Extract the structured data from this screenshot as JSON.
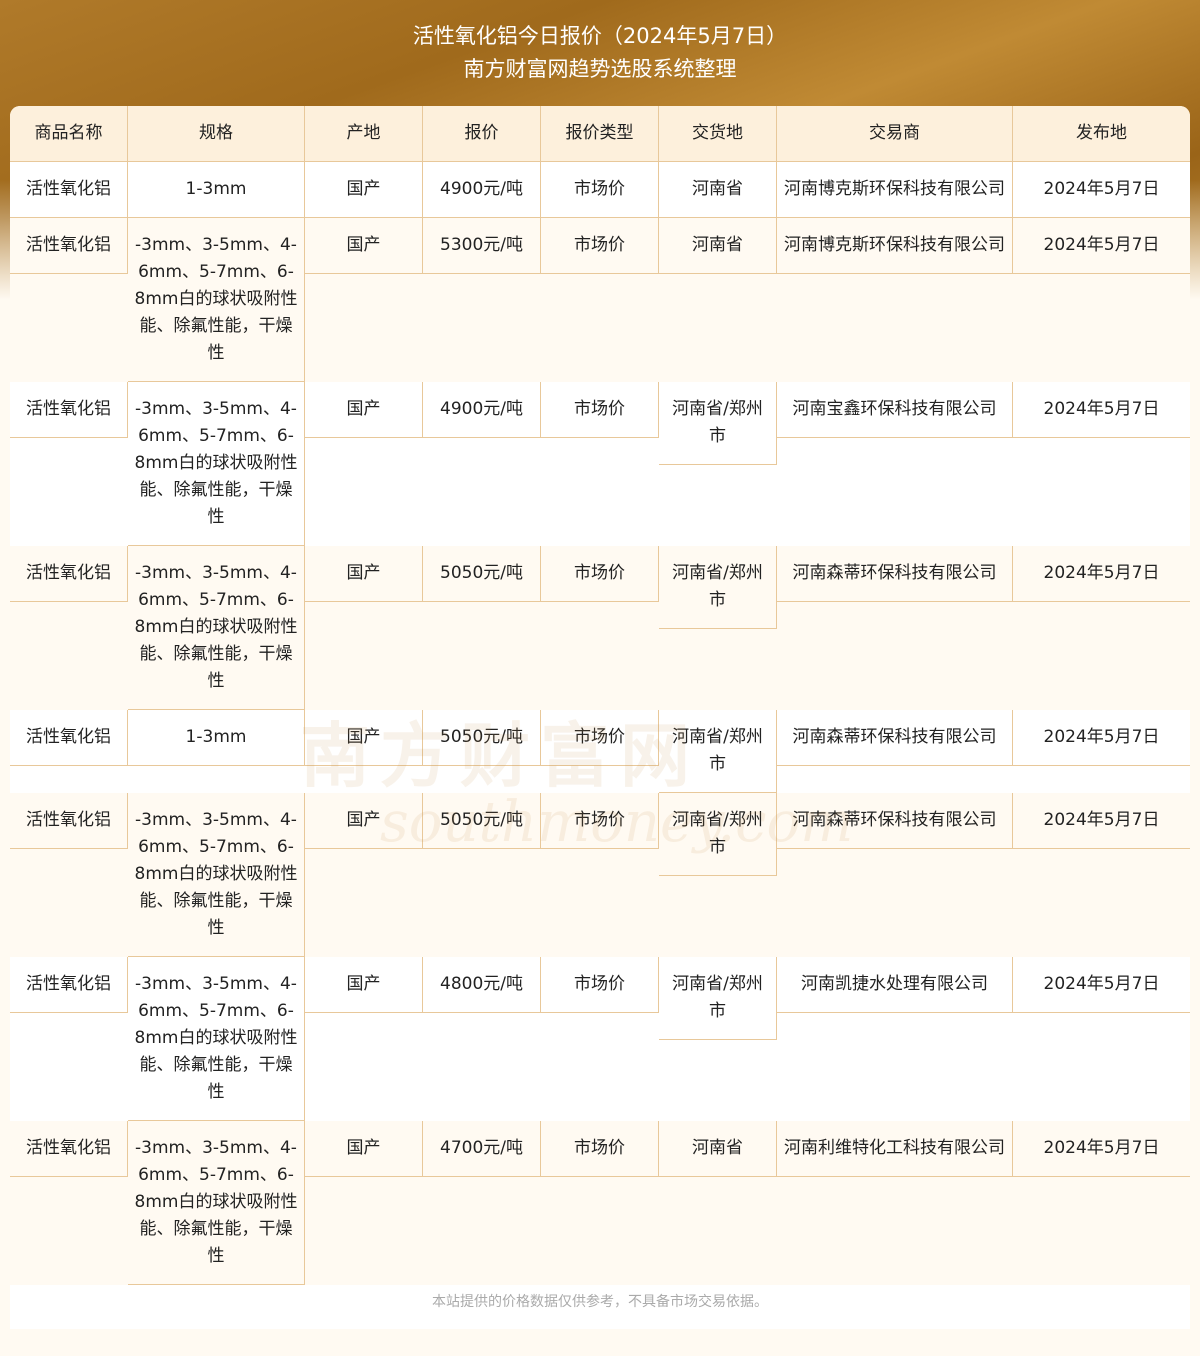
{
  "header": {
    "title": "活性氧化铝今日报价（2024年5月7日）",
    "subtitle": "南方财富网趋势选股系统整理"
  },
  "columns": [
    "商品名称",
    "规格",
    "产地",
    "报价",
    "报价类型",
    "交货地",
    "交易商",
    "发布地"
  ],
  "rows": [
    [
      "活性氧化铝",
      "1-3mm",
      "国产",
      "4900元/吨",
      "市场价",
      "河南省",
      "河南博克斯环保科技有限公司",
      "2024年5月7日"
    ],
    [
      "活性氧化铝",
      "-3mm、3-5mm、4-6mm、5-7mm、6-8mm白的球状吸附性能、除氟性能，干燥性",
      "国产",
      "5300元/吨",
      "市场价",
      "河南省",
      "河南博克斯环保科技有限公司",
      "2024年5月7日"
    ],
    [
      "活性氧化铝",
      "-3mm、3-5mm、4-6mm、5-7mm、6-8mm白的球状吸附性能、除氟性能，干燥性",
      "国产",
      "4900元/吨",
      "市场价",
      "河南省/郑州市",
      "河南宝鑫环保科技有限公司",
      "2024年5月7日"
    ],
    [
      "活性氧化铝",
      "-3mm、3-5mm、4-6mm、5-7mm、6-8mm白的球状吸附性能、除氟性能，干燥性",
      "国产",
      "5050元/吨",
      "市场价",
      "河南省/郑州市",
      "河南森蒂环保科技有限公司",
      "2024年5月7日"
    ],
    [
      "活性氧化铝",
      "1-3mm",
      "国产",
      "5050元/吨",
      "市场价",
      "河南省/郑州市",
      "河南森蒂环保科技有限公司",
      "2024年5月7日"
    ],
    [
      "活性氧化铝",
      "-3mm、3-5mm、4-6mm、5-7mm、6-8mm白的球状吸附性能、除氟性能，干燥性",
      "国产",
      "5050元/吨",
      "市场价",
      "河南省/郑州市",
      "河南森蒂环保科技有限公司",
      "2024年5月7日"
    ],
    [
      "活性氧化铝",
      "-3mm、3-5mm、4-6mm、5-7mm、6-8mm白的球状吸附性能、除氟性能，干燥性",
      "国产",
      "4800元/吨",
      "市场价",
      "河南省/郑州市",
      "河南凯捷水处理有限公司",
      "2024年5月7日"
    ],
    [
      "活性氧化铝",
      "-3mm、3-5mm、4-6mm、5-7mm、6-8mm白的球状吸附性能、除氟性能，干燥性",
      "国产",
      "4700元/吨",
      "市场价",
      "河南省",
      "河南利维特化工科技有限公司",
      "2024年5月7日"
    ]
  ],
  "footer": "本站提供的价格数据仅供参考，不具备市场交易依据。",
  "watermark": "南方财富网 southmoney.com",
  "colors": {
    "border": "#e8c89a",
    "header_bg": "#fdf0dc",
    "alt_row": "#fffaf2"
  }
}
